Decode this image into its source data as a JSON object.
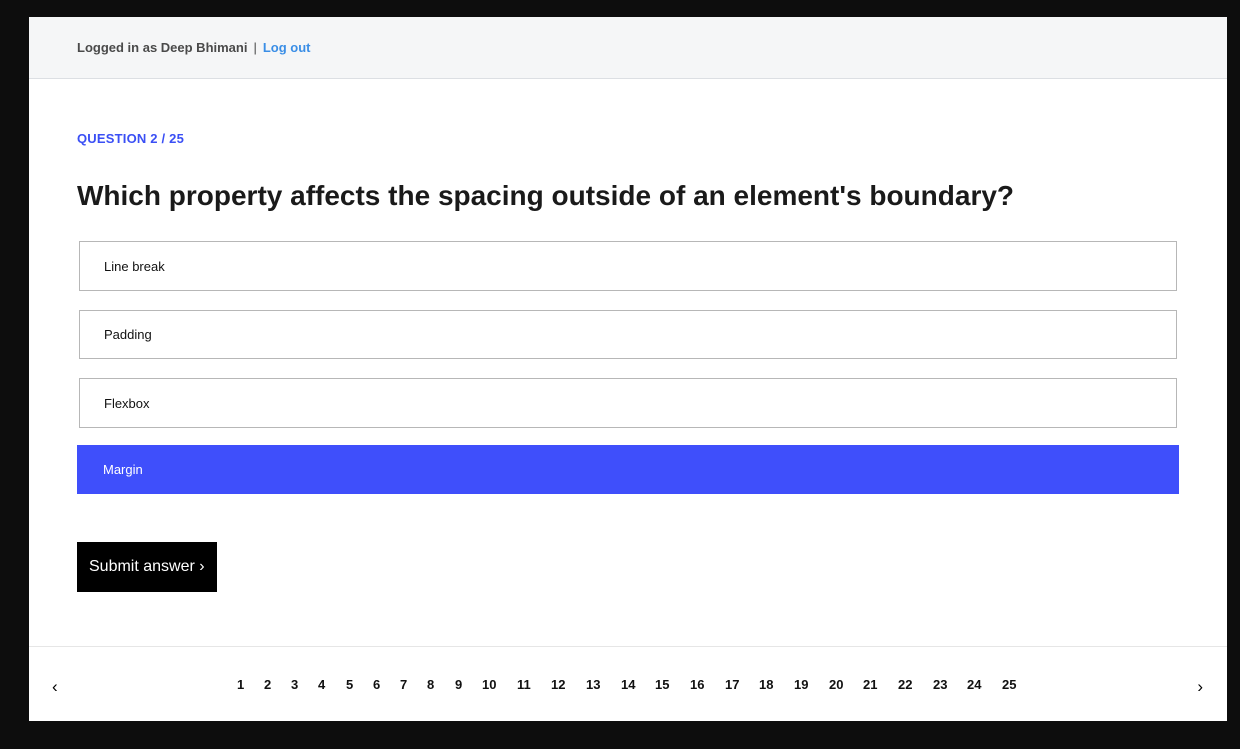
{
  "header": {
    "logged_in_text": "Logged in as Deep Bhimani",
    "separator": "|",
    "logout_label": "Log out"
  },
  "quiz": {
    "counter": "QUESTION 2 / 25",
    "question": "Which property affects the spacing outside of an element's boundary?",
    "options": [
      {
        "label": "Line break",
        "selected": false
      },
      {
        "label": "Padding",
        "selected": false
      },
      {
        "label": "Flexbox",
        "selected": false
      },
      {
        "label": "Margin",
        "selected": true
      }
    ],
    "submit_label": "Submit answer ›"
  },
  "pager": {
    "prev_icon": "‹",
    "next_icon": "›",
    "pages": [
      "1",
      "2",
      "3",
      "4",
      "5",
      "6",
      "7",
      "8",
      "9",
      "10",
      "11",
      "12",
      "13",
      "14",
      "15",
      "16",
      "17",
      "18",
      "19",
      "20",
      "21",
      "22",
      "23",
      "24",
      "25"
    ]
  },
  "colors": {
    "accent": "#3f4ffb",
    "link": "#3a8ee6"
  }
}
